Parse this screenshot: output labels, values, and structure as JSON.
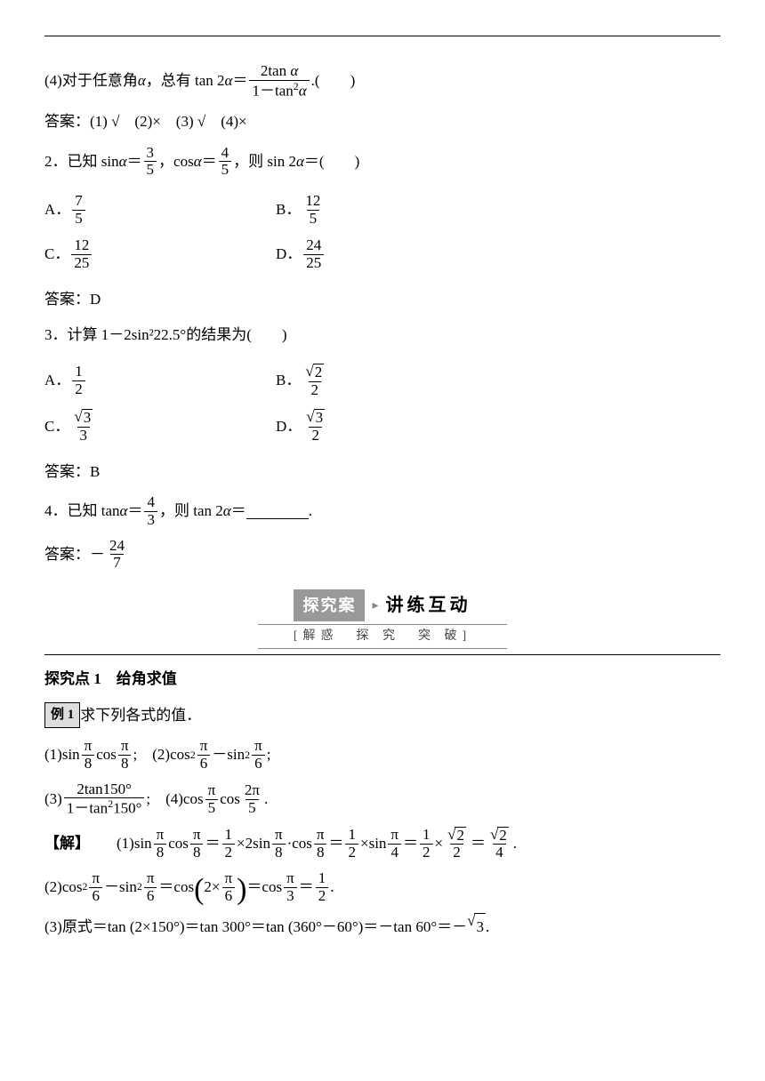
{
  "q4_stmt_prefix": "(4)对于任意角",
  "q4_stmt_mid": "，总有 tan 2",
  "q4_stmt_eq": "＝",
  "q4_num": "2tan ",
  "q4_den_a": "1－tan",
  "q4_den_b": "",
  "q4_tail": ".(　　)",
  "ans1_label": "答案：",
  "ans1_body": "(1) √　(2)×　(3) √　(4)×",
  "q2_prefix": "2．已知 sin",
  "q2_eq1": "＝",
  "q2_f1n": "3",
  "q2_f1d": "5",
  "q2_mid": "，cos ",
  "q2_f2n": "4",
  "q2_f2d": "5",
  "q2_mid2": "，则 sin 2",
  "q2_tail": "＝(　　)",
  "q2_A": "A．",
  "q2_An": "7",
  "q2_Ad": "5",
  "q2_B": "B．",
  "q2_Bn": "12",
  "q2_Bd": "5",
  "q2_C": "C．",
  "q2_Cn": "12",
  "q2_Cd": "25",
  "q2_D": "D．",
  "q2_Dn": "24",
  "q2_Dd": "25",
  "ans2": "答案：D",
  "q3_line": "3．计算 1－2sin²22.5°的结果为(　　)",
  "q3_A": "A．",
  "q3_An": "1",
  "q3_Ad": "2",
  "q3_B": "B．",
  "q3_Bn_r": "2",
  "q3_Bd": "2",
  "q3_C": "C．",
  "q3_Cn_r": "3",
  "q3_Cd": "3",
  "q3_D": "D．",
  "q3_Dn_r": "3",
  "q3_Dd": "2",
  "ans3": "答案：B",
  "q4b_prefix": "4．已知 tan",
  "q4b_eq": "＝",
  "q4b_f1n": "4",
  "q4b_f1d": "3",
  "q4b_mid": "，则 tan 2",
  "q4b_tail": "＝",
  "q4b_tail2": ".",
  "ans4_label": "答案：－",
  "ans4_n": "24",
  "ans4_d": "7",
  "banner_tag": "探究案",
  "banner_title": "讲练互动",
  "banner_sub": "[解惑　探 究　突 破]",
  "topic": "探究点 1　给角求值",
  "ex_tag": "例 1",
  "ex_prompt": " 求下列各式的值．",
  "e1_a": "(1)sin ",
  "e1_pi8n": "π",
  "e1_pi8d": "8",
  "e1_b": "cos ",
  "e1_sep": ";　(2)cos",
  "e1_pi6n": "π",
  "e1_pi6d": "6",
  "e1_c": "－sin",
  "e1_d": ";",
  "e3_a": "(3)",
  "e3_num": "2tan150°",
  "e3_den_a": "1－tan",
  "e3_den_b": "150°",
  "e3_sep": ";　(4)cos ",
  "e3_pi5n": "π",
  "e3_pi5d": "5",
  "e3_b": "cos ",
  "e3_2pi5n": "2π",
  "e3_2pi5d": "5",
  "e3_end": ".",
  "sol_tag": "【解】",
  "s1_a": "(1)sin ",
  "s1_b": "cos ",
  "s1_eq": "＝",
  "s1_h1n": "1",
  "s1_h1d": "2",
  "s1_t": "×2sin ",
  "s1_dot": "·cos ",
  "s1_t2": "×sin ",
  "s1_pi4n": "π",
  "s1_pi4d": "4",
  "s1_t3": "×",
  "s1_r2": "2",
  "s1_end": ".",
  "s2_a": "(2)cos",
  "s2_b": "－sin",
  "s2_eq": "＝cos",
  "s2_in": "2×",
  "s2_c": "＝cos ",
  "s2_pi3n": "π",
  "s2_pi3d": "3",
  "s2_d": "＝",
  "s2_end": ".",
  "s3": "(3)原式＝tan (2×150°)＝tan 300°＝tan (360°－60°)＝－tan 60°＝－",
  "s3_r": "3",
  "s3_end": ".",
  "alpha": "α"
}
